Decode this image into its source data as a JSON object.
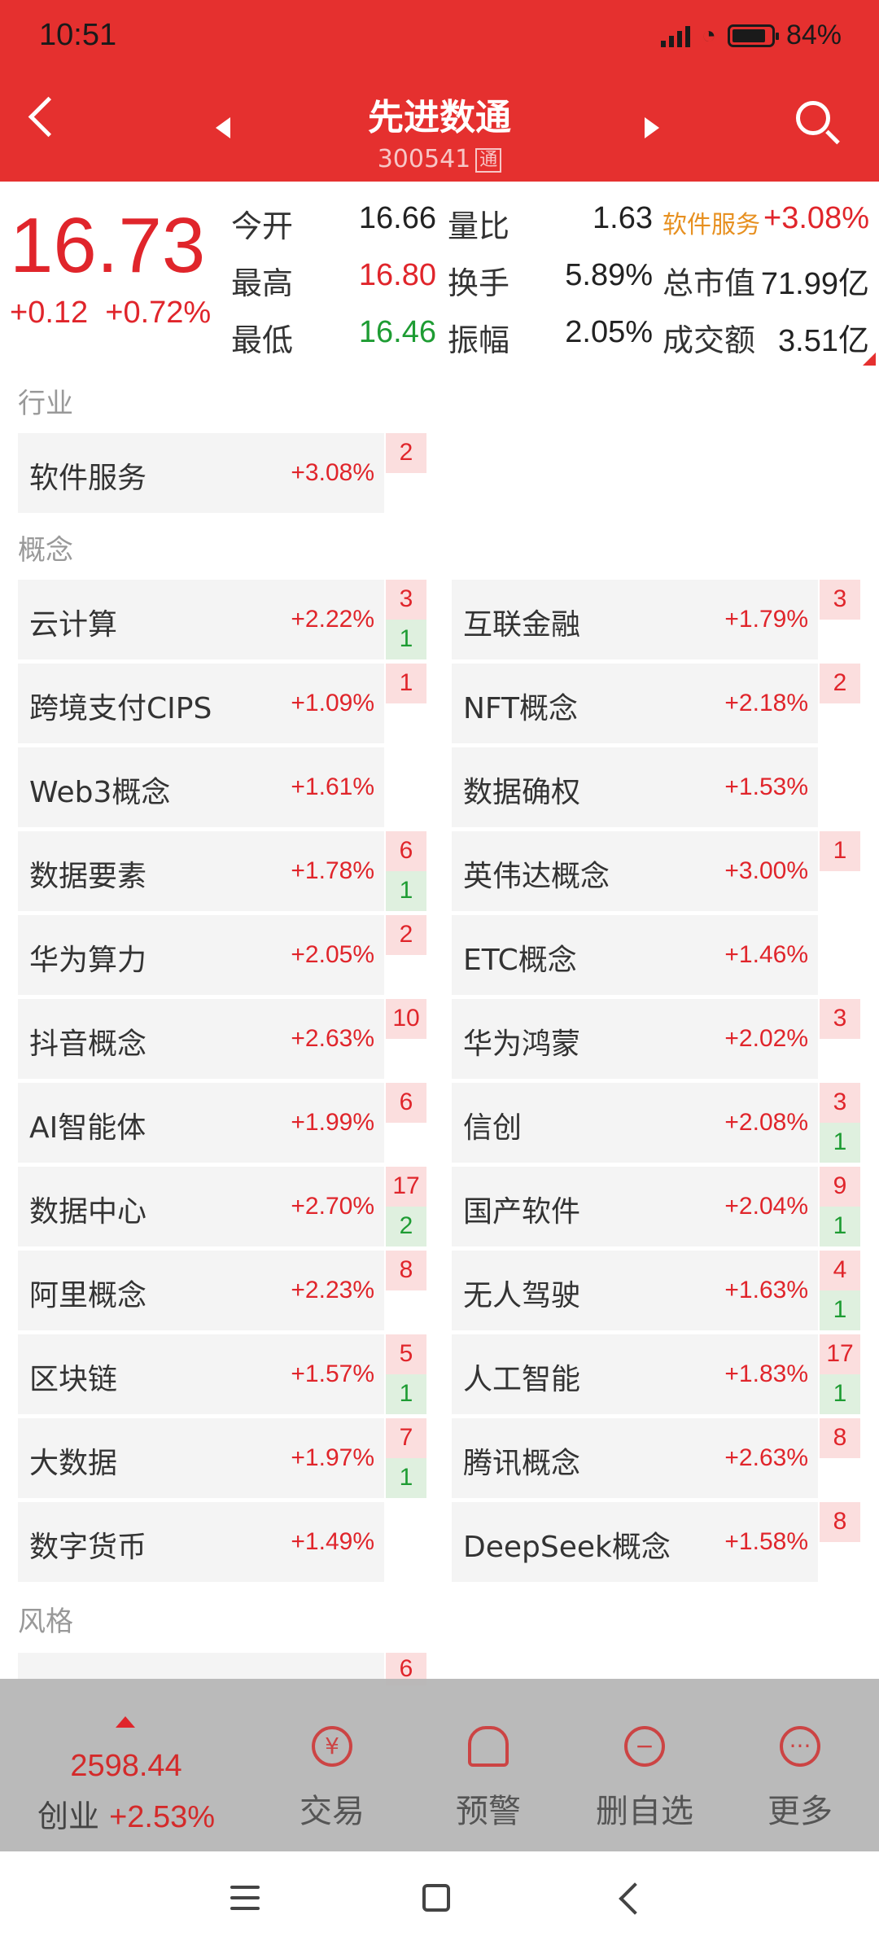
{
  "status_bar": {
    "time": "10:51",
    "battery": "84%"
  },
  "header": {
    "name": "先进数通",
    "code": "300541",
    "code_badge": "通"
  },
  "quote": {
    "price": "16.73",
    "change": "+0.12",
    "change_pct": "+0.72%",
    "rows": [
      [
        {
          "label": "今开",
          "value": "16.66"
        },
        {
          "label": "量比",
          "value": "1.63"
        },
        {
          "label": "软件服务",
          "value": "+3.08%"
        }
      ],
      [
        {
          "label": "最高",
          "value": "16.80"
        },
        {
          "label": "换手",
          "value": "5.89%"
        },
        {
          "label": "总市值",
          "value": "71.99亿"
        }
      ],
      [
        {
          "label": "最低",
          "value": "16.46"
        },
        {
          "label": "振幅",
          "value": "2.05%"
        },
        {
          "label": "成交额",
          "value": "3.51亿"
        }
      ]
    ]
  },
  "sections": {
    "industry": "行业",
    "concept": "概念",
    "style": "风格"
  },
  "industry": [
    {
      "name": "软件服务",
      "pct": "+3.08%",
      "up": "2"
    }
  ],
  "concepts": [
    {
      "name": "云计算",
      "pct": "+2.22%",
      "up": "3",
      "down": "1"
    },
    {
      "name": "互联金融",
      "pct": "+1.79%",
      "up": "3"
    },
    {
      "name": "跨境支付CIPS",
      "pct": "+1.09%",
      "up": "1"
    },
    {
      "name": "NFT概念",
      "pct": "+2.18%",
      "up": "2"
    },
    {
      "name": "Web3概念",
      "pct": "+1.61%"
    },
    {
      "name": "数据确权",
      "pct": "+1.53%"
    },
    {
      "name": "数据要素",
      "pct": "+1.78%",
      "up": "6",
      "down": "1"
    },
    {
      "name": "英伟达概念",
      "pct": "+3.00%",
      "up": "1"
    },
    {
      "name": "华为算力",
      "pct": "+2.05%",
      "up": "2"
    },
    {
      "name": "ETC概念",
      "pct": "+1.46%"
    },
    {
      "name": "抖音概念",
      "pct": "+2.63%",
      "up": "10"
    },
    {
      "name": "华为鸿蒙",
      "pct": "+2.02%",
      "up": "3"
    },
    {
      "name": "AI智能体",
      "pct": "+1.99%",
      "up": "6"
    },
    {
      "name": "信创",
      "pct": "+2.08%",
      "up": "3",
      "down": "1"
    },
    {
      "name": "数据中心",
      "pct": "+2.70%",
      "up": "17",
      "down": "2"
    },
    {
      "name": "国产软件",
      "pct": "+2.04%",
      "up": "9",
      "down": "1"
    },
    {
      "name": "阿里概念",
      "pct": "+2.23%",
      "up": "8"
    },
    {
      "name": "无人驾驶",
      "pct": "+1.63%",
      "up": "4",
      "down": "1"
    },
    {
      "name": "区块链",
      "pct": "+1.57%",
      "up": "5",
      "down": "1"
    },
    {
      "name": "人工智能",
      "pct": "+1.83%",
      "up": "17",
      "down": "1"
    },
    {
      "name": "大数据",
      "pct": "+1.97%",
      "up": "7",
      "down": "1"
    },
    {
      "name": "腾讯概念",
      "pct": "+2.63%",
      "up": "8"
    },
    {
      "name": "数字货币",
      "pct": "+1.49%"
    },
    {
      "name": "DeepSeek概念",
      "pct": "+1.58%",
      "up": "8"
    }
  ],
  "style_first_badge": "6",
  "bottom": {
    "index_value": "2598.44",
    "index_name": "创业",
    "index_pct": "+2.53%",
    "buttons": [
      "交易",
      "预警",
      "删自选",
      "更多"
    ]
  },
  "colors": {
    "brand": "#e5302f",
    "up": "#e0252b",
    "down": "#1e9c33"
  }
}
